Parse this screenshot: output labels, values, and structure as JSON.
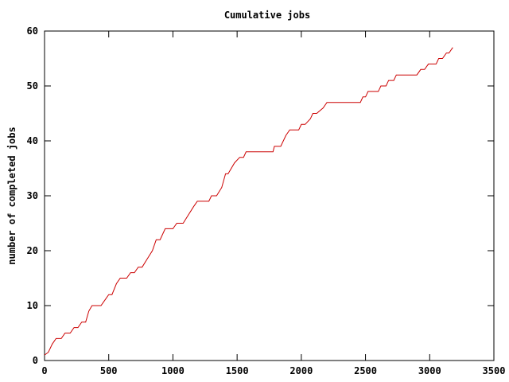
{
  "chart_data": {
    "type": "line",
    "title": "Cumulative jobs",
    "xlabel": "",
    "ylabel": "number of completed jobs",
    "xlim": [
      0,
      3500
    ],
    "ylim": [
      0,
      60
    ],
    "x_ticks": [
      0,
      500,
      1000,
      1500,
      2000,
      2500,
      3000,
      3500
    ],
    "y_ticks": [
      0,
      10,
      20,
      30,
      40,
      50,
      60
    ],
    "grid": false,
    "legend": "none",
    "series": [
      {
        "color": "#cc0000",
        "points": [
          [
            0,
            1
          ],
          [
            30,
            1.5
          ],
          [
            60,
            3
          ],
          [
            90,
            4
          ],
          [
            130,
            4
          ],
          [
            160,
            5
          ],
          [
            200,
            5
          ],
          [
            230,
            6
          ],
          [
            260,
            6
          ],
          [
            290,
            7
          ],
          [
            320,
            7
          ],
          [
            345,
            9
          ],
          [
            370,
            10
          ],
          [
            440,
            10
          ],
          [
            470,
            11
          ],
          [
            500,
            12
          ],
          [
            525,
            12
          ],
          [
            560,
            14
          ],
          [
            590,
            15
          ],
          [
            640,
            15
          ],
          [
            670,
            16
          ],
          [
            700,
            16
          ],
          [
            730,
            17
          ],
          [
            760,
            17
          ],
          [
            800,
            18.5
          ],
          [
            840,
            20
          ],
          [
            870,
            22
          ],
          [
            900,
            22
          ],
          [
            940,
            24
          ],
          [
            1000,
            24
          ],
          [
            1030,
            25
          ],
          [
            1080,
            25
          ],
          [
            1120,
            26.5
          ],
          [
            1160,
            28
          ],
          [
            1190,
            29
          ],
          [
            1280,
            29
          ],
          [
            1300,
            30
          ],
          [
            1340,
            30
          ],
          [
            1380,
            31.5
          ],
          [
            1410,
            34
          ],
          [
            1430,
            34
          ],
          [
            1480,
            36
          ],
          [
            1520,
            37
          ],
          [
            1550,
            37
          ],
          [
            1570,
            38
          ],
          [
            1780,
            38
          ],
          [
            1790,
            39
          ],
          [
            1840,
            39
          ],
          [
            1880,
            41
          ],
          [
            1910,
            42
          ],
          [
            1980,
            42
          ],
          [
            2000,
            43
          ],
          [
            2030,
            43
          ],
          [
            2070,
            44
          ],
          [
            2090,
            45
          ],
          [
            2120,
            45
          ],
          [
            2170,
            46
          ],
          [
            2200,
            47
          ],
          [
            2460,
            47
          ],
          [
            2480,
            48
          ],
          [
            2500,
            48
          ],
          [
            2520,
            49
          ],
          [
            2600,
            49
          ],
          [
            2620,
            50
          ],
          [
            2660,
            50
          ],
          [
            2680,
            51
          ],
          [
            2720,
            51
          ],
          [
            2740,
            52
          ],
          [
            2900,
            52
          ],
          [
            2930,
            53
          ],
          [
            2960,
            53
          ],
          [
            2990,
            54
          ],
          [
            3050,
            54
          ],
          [
            3070,
            55
          ],
          [
            3100,
            55
          ],
          [
            3130,
            56
          ],
          [
            3150,
            56
          ],
          [
            3180,
            57
          ]
        ]
      }
    ]
  }
}
